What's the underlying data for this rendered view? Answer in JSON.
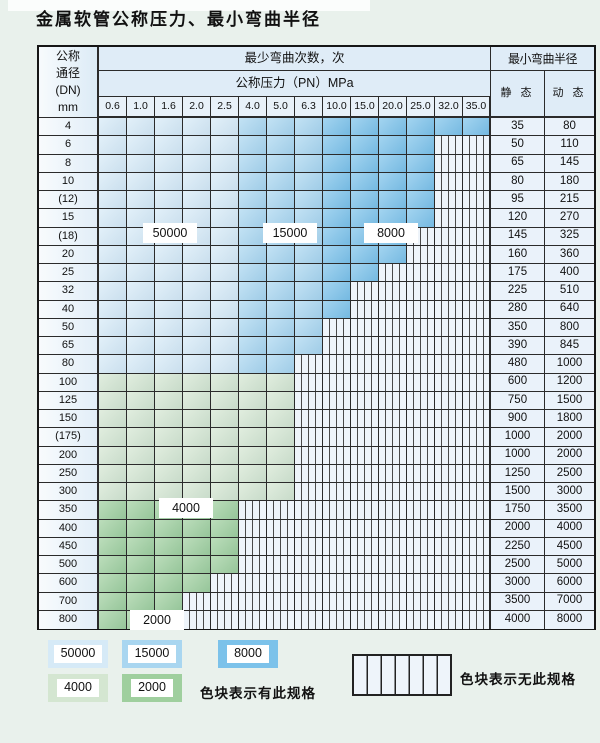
{
  "page": {
    "title": "金属软管公称压力、最小弯曲半径"
  },
  "table": {
    "corner_header": [
      "公称",
      "通径",
      "(DN)",
      "mm"
    ],
    "bend_cycles_header": "最少弯曲次数，次",
    "pressure_header": "公称压力（PN）MPa",
    "radius_header": "最小弯曲半径",
    "static_header": "静 态",
    "dynamic_header": "动 态",
    "pressure_columns": [
      "0.6",
      "1.0",
      "1.6",
      "2.0",
      "2.5",
      "4.0",
      "5.0",
      "6.3",
      "10.0",
      "15.0",
      "20.0",
      "25.0",
      "32.0",
      "35.0"
    ],
    "blue_zone_thresholds": {
      "c50000_max_col": 4,
      "c15000_max_col": 7
    },
    "rows": [
      {
        "dn": "4",
        "zone": "blue",
        "colored_cols": 14,
        "static": "35",
        "dynamic": "80"
      },
      {
        "dn": "6",
        "zone": "blue",
        "colored_cols": 12,
        "static": "50",
        "dynamic": "110"
      },
      {
        "dn": "8",
        "zone": "blue",
        "colored_cols": 12,
        "static": "65",
        "dynamic": "145"
      },
      {
        "dn": "10",
        "zone": "blue",
        "colored_cols": 12,
        "static": "80",
        "dynamic": "180"
      },
      {
        "dn": "(12)",
        "zone": "blue",
        "colored_cols": 12,
        "static": "95",
        "dynamic": "215"
      },
      {
        "dn": "15",
        "zone": "blue",
        "colored_cols": 12,
        "static": "120",
        "dynamic": "270"
      },
      {
        "dn": "(18)",
        "zone": "blue",
        "colored_cols": 11,
        "static": "145",
        "dynamic": "325"
      },
      {
        "dn": "20",
        "zone": "blue",
        "colored_cols": 11,
        "static": "160",
        "dynamic": "360"
      },
      {
        "dn": "25",
        "zone": "blue",
        "colored_cols": 10,
        "static": "175",
        "dynamic": "400"
      },
      {
        "dn": "32",
        "zone": "blue",
        "colored_cols": 9,
        "static": "225",
        "dynamic": "510"
      },
      {
        "dn": "40",
        "zone": "blue",
        "colored_cols": 9,
        "static": "280",
        "dynamic": "640"
      },
      {
        "dn": "50",
        "zone": "blue",
        "colored_cols": 8,
        "static": "350",
        "dynamic": "800"
      },
      {
        "dn": "65",
        "zone": "blue",
        "colored_cols": 8,
        "static": "390",
        "dynamic": "845"
      },
      {
        "dn": "80",
        "zone": "blue",
        "colored_cols": 7,
        "static": "480",
        "dynamic": "1000"
      },
      {
        "dn": "100",
        "zone": "green",
        "cycle": "4000",
        "colored_cols": 7,
        "static": "600",
        "dynamic": "1200"
      },
      {
        "dn": "125",
        "zone": "green",
        "cycle": "4000",
        "colored_cols": 7,
        "static": "750",
        "dynamic": "1500"
      },
      {
        "dn": "150",
        "zone": "green",
        "cycle": "4000",
        "colored_cols": 7,
        "static": "900",
        "dynamic": "1800"
      },
      {
        "dn": "(175)",
        "zone": "green",
        "cycle": "4000",
        "colored_cols": 7,
        "static": "1000",
        "dynamic": "2000"
      },
      {
        "dn": "200",
        "zone": "green",
        "cycle": "4000",
        "colored_cols": 7,
        "static": "1000",
        "dynamic": "2000"
      },
      {
        "dn": "250",
        "zone": "green",
        "cycle": "4000",
        "colored_cols": 7,
        "static": "1250",
        "dynamic": "2500"
      },
      {
        "dn": "300",
        "zone": "green",
        "cycle": "4000",
        "colored_cols": 7,
        "static": "1500",
        "dynamic": "3000"
      },
      {
        "dn": "350",
        "zone": "green",
        "cycle": "2000",
        "colored_cols": 5,
        "static": "1750",
        "dynamic": "3500"
      },
      {
        "dn": "400",
        "zone": "green",
        "cycle": "2000",
        "colored_cols": 5,
        "static": "2000",
        "dynamic": "4000"
      },
      {
        "dn": "450",
        "zone": "green",
        "cycle": "2000",
        "colored_cols": 5,
        "static": "2250",
        "dynamic": "4500"
      },
      {
        "dn": "500",
        "zone": "green",
        "cycle": "2000",
        "colored_cols": 5,
        "static": "2500",
        "dynamic": "5000"
      },
      {
        "dn": "600",
        "zone": "green",
        "cycle": "2000",
        "colored_cols": 4,
        "static": "3000",
        "dynamic": "6000"
      },
      {
        "dn": "700",
        "zone": "green",
        "cycle": "2000",
        "colored_cols": 3,
        "static": "3500",
        "dynamic": "7000"
      },
      {
        "dn": "800",
        "zone": "green",
        "cycle": "2000",
        "colored_cols": 3,
        "static": "4000",
        "dynamic": "8000"
      }
    ],
    "cycle_labels": {
      "l50000": "50000",
      "l15000": "15000",
      "l8000": "8000",
      "l4000": "4000",
      "l2000": "2000"
    }
  },
  "legend": {
    "swatches": [
      {
        "label": "50000",
        "cycle": "50000"
      },
      {
        "label": "15000",
        "cycle": "15000"
      },
      {
        "label": "8000",
        "cycle": "8000"
      },
      {
        "label": "4000",
        "cycle": "4000"
      },
      {
        "label": "2000",
        "cycle": "2000"
      }
    ],
    "has_spec_note": "色块表示有此规格",
    "no_spec_note": "色块表示无此规格"
  },
  "colors": {
    "c50000": "#d6eaf7",
    "c15000": "#a9d6f0",
    "c8000": "#7cc2ea",
    "c4000": "#d4e6d1",
    "c2000": "#9fcf9e",
    "no_spec_hatch_base": "#eef4fa",
    "header_bg": "#dfecf7",
    "page_bg": "#e9f1ec"
  }
}
